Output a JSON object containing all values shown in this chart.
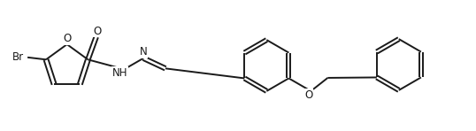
{
  "bg_color": "#ffffff",
  "line_color": "#1a1a1a",
  "line_width": 1.4,
  "font_size": 8.5,
  "fig_width": 5.38,
  "fig_height": 1.48,
  "dpi": 100,
  "xlim": [
    0,
    10.8
  ],
  "ylim": [
    0,
    2.8
  ]
}
